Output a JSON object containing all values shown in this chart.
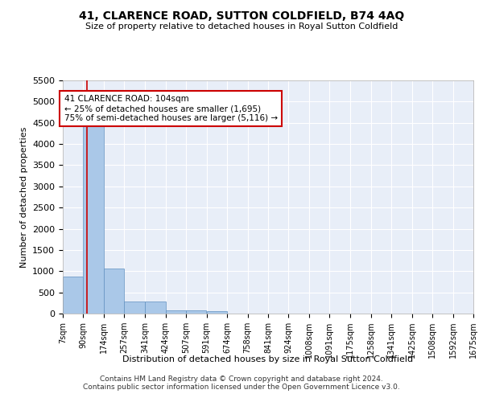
{
  "title": "41, CLARENCE ROAD, SUTTON COLDFIELD, B74 4AQ",
  "subtitle": "Size of property relative to detached houses in Royal Sutton Coldfield",
  "xlabel": "Distribution of detached houses by size in Royal Sutton Coldfield",
  "ylabel": "Number of detached properties",
  "footnote1": "Contains HM Land Registry data © Crown copyright and database right 2024.",
  "footnote2": "Contains public sector information licensed under the Open Government Licence v3.0.",
  "annotation_title": "41 CLARENCE ROAD: 104sqm",
  "annotation_line2": "← 25% of detached houses are smaller (1,695)",
  "annotation_line3": "75% of semi-detached houses are larger (5,116) →",
  "bar_color": "#aac8e8",
  "bar_edge_color": "#6090c0",
  "highlight_line_color": "#cc0000",
  "annotation_box_color": "#cc0000",
  "bg_color": "#e8eef8",
  "grid_color": "#ffffff",
  "bins": [
    7,
    90,
    174,
    257,
    341,
    424,
    507,
    591,
    674,
    758,
    841,
    924,
    1008,
    1091,
    1175,
    1258,
    1341,
    1425,
    1508,
    1592,
    1675
  ],
  "bin_labels": [
    "7sqm",
    "90sqm",
    "174sqm",
    "257sqm",
    "341sqm",
    "424sqm",
    "507sqm",
    "591sqm",
    "674sqm",
    "758sqm",
    "841sqm",
    "924sqm",
    "1008sqm",
    "1091sqm",
    "1175sqm",
    "1258sqm",
    "1341sqm",
    "1425sqm",
    "1508sqm",
    "1592sqm",
    "1675sqm"
  ],
  "bar_heights": [
    880,
    4580,
    1060,
    290,
    290,
    80,
    80,
    50,
    0,
    0,
    0,
    0,
    0,
    0,
    0,
    0,
    0,
    0,
    0,
    0
  ],
  "property_size": 104,
  "ylim": [
    0,
    5500
  ],
  "yticks": [
    0,
    500,
    1000,
    1500,
    2000,
    2500,
    3000,
    3500,
    4000,
    4500,
    5000,
    5500
  ]
}
